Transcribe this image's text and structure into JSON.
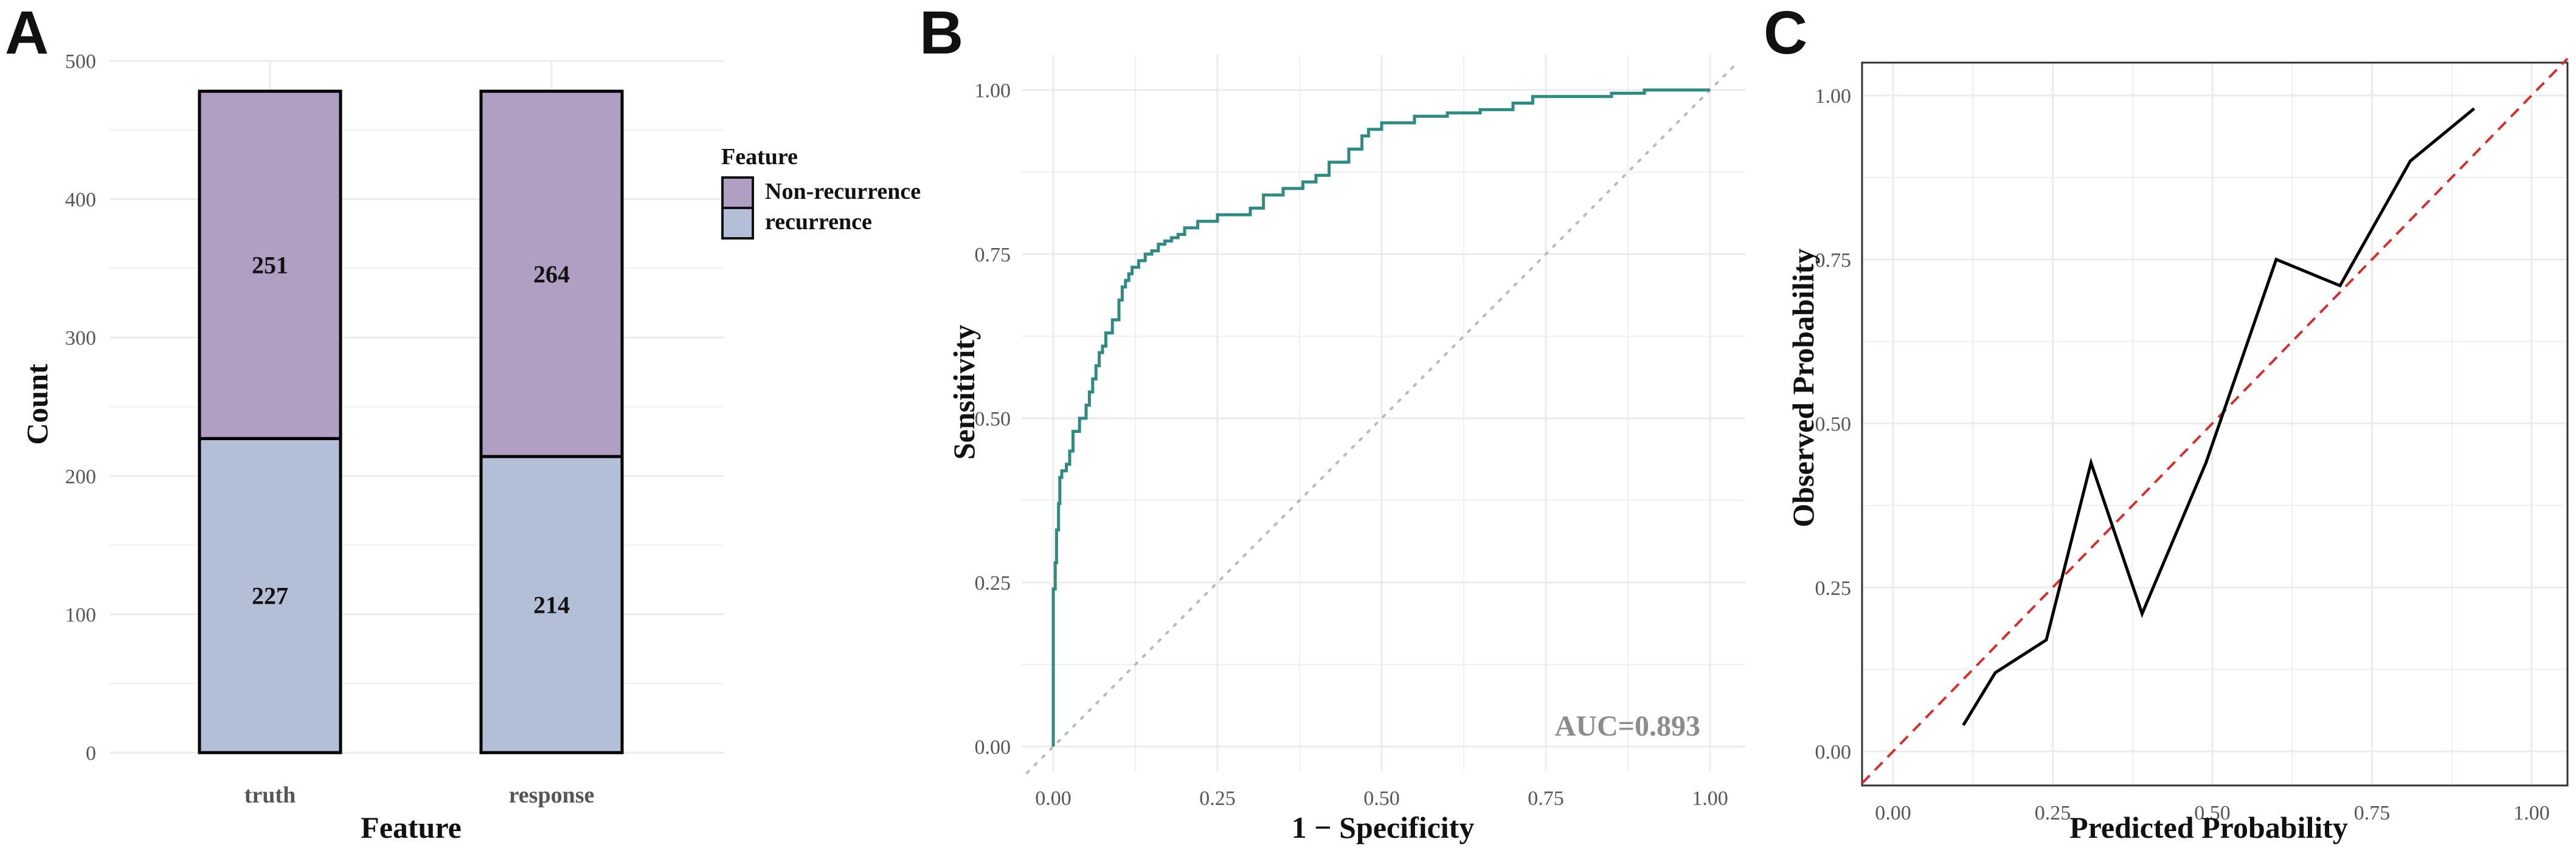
{
  "colors": {
    "non_recurrence": "#b09ec3",
    "recurrence": "#b3bfd6",
    "roc_line": "#2f8a82",
    "grid": "#ebebeb",
    "diagonal": "#b9b9b9",
    "calibration_line": "#000000",
    "ideal_line": "#d32f2f"
  },
  "chart_data": [
    {
      "panel": "A",
      "type": "bar",
      "stacked": true,
      "categories": [
        "truth",
        "response"
      ],
      "series": [
        {
          "name": "recurrence",
          "values": [
            227,
            214
          ]
        },
        {
          "name": "Non-recurrence",
          "values": [
            251,
            264
          ]
        }
      ],
      "xlabel": "Feature",
      "ylabel": "Count",
      "ylim": [
        0,
        500
      ],
      "yticks": [
        "0",
        "100",
        "200",
        "300",
        "400",
        "500"
      ],
      "legend": {
        "title": "Feature",
        "entries": [
          "Non-recurrence",
          "recurrence"
        ],
        "position": "right"
      }
    },
    {
      "panel": "B",
      "type": "line",
      "title": "",
      "xlabel": "1 − Specificity",
      "ylabel": "Sensitivity",
      "xlim": [
        0,
        1
      ],
      "ylim": [
        0,
        1
      ],
      "xticks": [
        "0.00",
        "0.25",
        "0.50",
        "0.75",
        "1.00"
      ],
      "yticks": [
        "0.00",
        "0.25",
        "0.50",
        "0.75",
        "1.00"
      ],
      "annotation": "AUC=0.893",
      "reference_line": "diagonal",
      "series": [
        {
          "name": "ROC",
          "x": [
            0,
            0,
            0.003,
            0.005,
            0.008,
            0.01,
            0.013,
            0.015,
            0.02,
            0.025,
            0.03,
            0.04,
            0.05,
            0.055,
            0.06,
            0.065,
            0.07,
            0.075,
            0.08,
            0.09,
            0.1,
            0.105,
            0.11,
            0.115,
            0.12,
            0.13,
            0.14,
            0.15,
            0.16,
            0.17,
            0.18,
            0.19,
            0.2,
            0.22,
            0.25,
            0.3,
            0.32,
            0.35,
            0.38,
            0.4,
            0.42,
            0.45,
            0.47,
            0.48,
            0.5,
            0.52,
            0.55,
            0.6,
            0.65,
            0.7,
            0.73,
            0.75,
            0.8,
            0.85,
            0.9,
            0.95,
            0.98,
            1.0
          ],
          "y": [
            0,
            0.12,
            0.24,
            0.28,
            0.33,
            0.37,
            0.41,
            0.42,
            0.42,
            0.43,
            0.45,
            0.48,
            0.5,
            0.52,
            0.54,
            0.56,
            0.58,
            0.6,
            0.61,
            0.63,
            0.65,
            0.68,
            0.7,
            0.71,
            0.72,
            0.73,
            0.74,
            0.75,
            0.755,
            0.765,
            0.77,
            0.775,
            0.78,
            0.79,
            0.8,
            0.81,
            0.82,
            0.84,
            0.85,
            0.86,
            0.87,
            0.89,
            0.91,
            0.93,
            0.94,
            0.95,
            0.95,
            0.96,
            0.965,
            0.97,
            0.98,
            0.99,
            0.99,
            0.99,
            0.995,
            1.0,
            1.0,
            1.0
          ]
        }
      ]
    },
    {
      "panel": "C",
      "type": "line",
      "title": "",
      "xlabel": "Predicted Probability",
      "ylabel": "Observed Probability",
      "xlim": [
        -0.04,
        1.04
      ],
      "ylim": [
        -0.04,
        1.04
      ],
      "xticks": [
        "0.00",
        "0.25",
        "0.50",
        "0.75",
        "1.00"
      ],
      "yticks": [
        "0.00",
        "0.25",
        "0.50",
        "0.75",
        "1.00"
      ],
      "reference_line": "ideal (y = x, dashed)",
      "series": [
        {
          "name": "Calibration",
          "x": [
            0.11,
            0.16,
            0.24,
            0.31,
            0.39,
            0.49,
            0.6,
            0.7,
            0.81,
            0.91
          ],
          "y": [
            0.04,
            0.12,
            0.17,
            0.44,
            0.21,
            0.44,
            0.75,
            0.71,
            0.9,
            0.98
          ]
        }
      ]
    }
  ]
}
